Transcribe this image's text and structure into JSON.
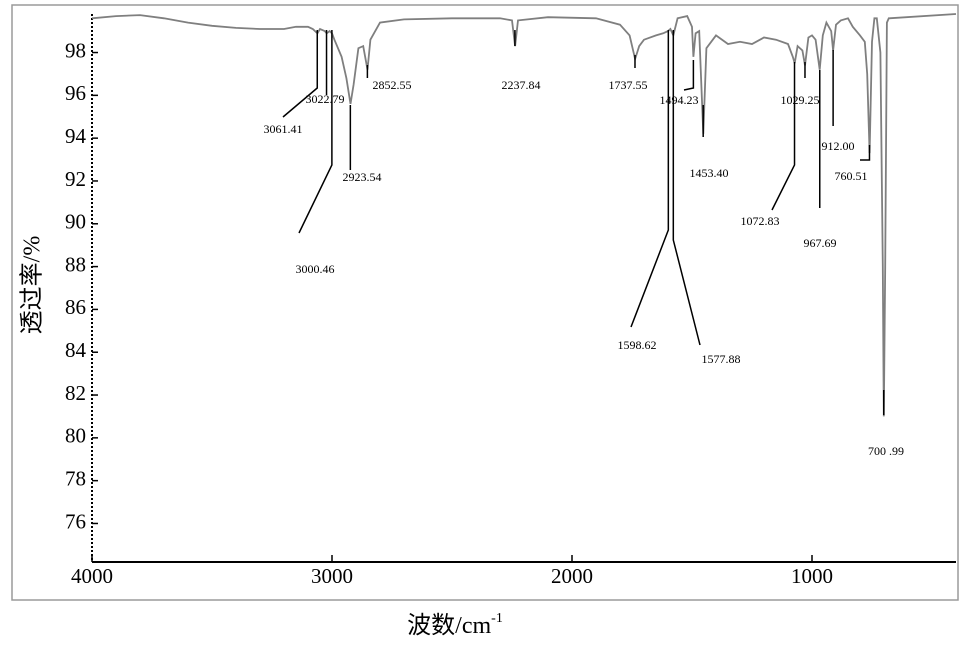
{
  "chart_data": {
    "type": "line",
    "x_label": "波数/cm",
    "x_label_sup": "-1",
    "y_label": "透过率/%",
    "color": "#7f7f7f",
    "xlim": [
      4000,
      400
    ],
    "ylim": [
      74.2,
      99.8
    ],
    "xticks": [
      4000,
      3000,
      2000,
      1000
    ],
    "yticks": [
      76,
      78,
      80,
      82,
      84,
      86,
      88,
      90,
      92,
      94,
      96,
      98
    ],
    "x": [
      4000,
      3900,
      3800,
      3700,
      3600,
      3500,
      3400,
      3300,
      3200,
      3150,
      3100,
      3080,
      3061,
      3050,
      3030,
      3022,
      3010,
      3000,
      2990,
      2960,
      2940,
      2923,
      2910,
      2890,
      2870,
      2852,
      2840,
      2800,
      2700,
      2500,
      2300,
      2250,
      2237,
      2225,
      2100,
      1900,
      1800,
      1760,
      1737,
      1720,
      1700,
      1650,
      1620,
      1600,
      1590,
      1578,
      1560,
      1520,
      1500,
      1494,
      1485,
      1470,
      1453,
      1440,
      1400,
      1350,
      1300,
      1250,
      1200,
      1150,
      1100,
      1080,
      1072,
      1060,
      1040,
      1029,
      1015,
      1000,
      985,
      968,
      955,
      940,
      920,
      912,
      900,
      880,
      850,
      830,
      800,
      780,
      770,
      760,
      750,
      740,
      730,
      715,
      705,
      701,
      695,
      688,
      680,
      400
    ],
    "values": [
      99.6,
      99.7,
      99.75,
      99.6,
      99.4,
      99.25,
      99.15,
      99.1,
      99.1,
      99.2,
      99.2,
      99.1,
      98.9,
      99.1,
      99.0,
      98.9,
      99.0,
      98.9,
      98.6,
      97.8,
      96.8,
      95.6,
      96.5,
      98.2,
      98.3,
      97.2,
      98.6,
      99.4,
      99.55,
      99.6,
      99.6,
      99.5,
      98.3,
      99.5,
      99.65,
      99.6,
      99.3,
      98.8,
      97.7,
      98.3,
      98.6,
      98.8,
      98.9,
      99.0,
      99.1,
      98.8,
      99.6,
      99.7,
      99.2,
      97.8,
      98.9,
      99.0,
      94.2,
      98.2,
      98.8,
      98.4,
      98.5,
      98.4,
      98.7,
      98.6,
      98.4,
      97.8,
      97.5,
      98.3,
      98.1,
      97.4,
      98.7,
      98.8,
      98.6,
      97.2,
      98.8,
      99.4,
      99.0,
      98.1,
      99.3,
      99.5,
      99.6,
      99.2,
      98.8,
      98.5,
      97.0,
      93.3,
      98.5,
      99.6,
      99.6,
      98.0,
      88.0,
      81.0,
      88.0,
      99.4,
      99.6,
      99.8
    ],
    "annotations": [
      {
        "x": 3061.41,
        "label": "3061.41"
      },
      {
        "x": 3022.79,
        "label": "3022.79"
      },
      {
        "x": 3000.46,
        "label": "3000.46"
      },
      {
        "x": 2923.54,
        "label": "2923.54"
      },
      {
        "x": 2852.55,
        "label": "2852.55"
      },
      {
        "x": 2237.84,
        "label": "2237.84"
      },
      {
        "x": 1737.55,
        "label": "1737.55"
      },
      {
        "x": 1598.62,
        "label": "1598.62"
      },
      {
        "x": 1577.88,
        "label": "1577.88"
      },
      {
        "x": 1494.23,
        "label": "1494.23"
      },
      {
        "x": 1453.4,
        "label": "1453.40"
      },
      {
        "x": 1072.83,
        "label": "1072.83"
      },
      {
        "x": 1029.25,
        "label": "1029.25"
      },
      {
        "x": 967.69,
        "label": "967.69"
      },
      {
        "x": 912.0,
        "label": "912.00"
      },
      {
        "x": 760.51,
        "label": "760.51"
      },
      {
        "x": 700.99,
        "label": "700 .99"
      }
    ]
  }
}
